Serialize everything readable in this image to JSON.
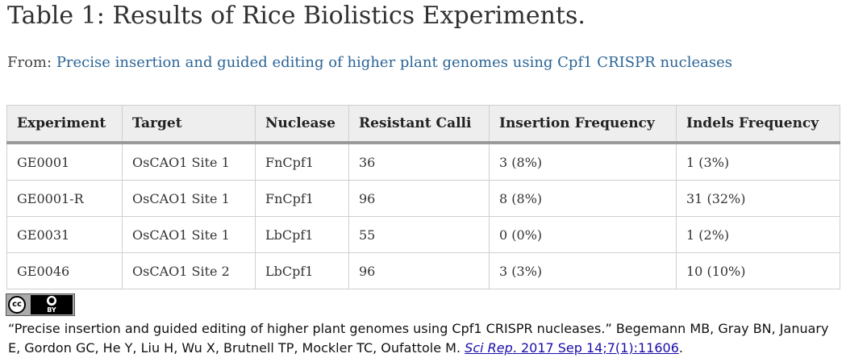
{
  "title": "Table 1: Results of Rice Biolistics Experiments.",
  "from": {
    "prefix": "From:",
    "link_text": "Precise insertion and guided editing of higher plant genomes using Cpf1 CRISPR nucleases"
  },
  "table": {
    "headers": [
      "Experiment",
      "Target",
      "Nuclease",
      "Resistant Calli",
      "Insertion Frequency",
      "Indels Frequency"
    ],
    "rows": [
      [
        "GE0001",
        "OsCAO1 Site 1",
        "FnCpf1",
        "36",
        "3 (8%)",
        "1 (3%)"
      ],
      [
        "GE0001-R",
        "OsCAO1 Site 1",
        "FnCpf1",
        "96",
        "8 (8%)",
        "31 (32%)"
      ],
      [
        "GE0031",
        "OsCAO1 Site 1",
        "LbCpf1",
        "55",
        "0 (0%)",
        "1 (2%)"
      ],
      [
        "GE0046",
        "OsCAO1 Site 2",
        "LbCpf1",
        "96",
        "3 (3%)",
        "10 (10%)"
      ]
    ]
  },
  "license": {
    "cc": "cc",
    "by_label": "BY",
    "icon": "creative-commons-by-icon"
  },
  "citation": {
    "text": "“Precise insertion and guided editing of higher plant genomes using Cpf1 CRISPR nucleases.” Begemann MB, Gray BN, January E, Gordon GC, He Y, Liu H, Wu X, Brutnell TP, Mockler TC, Oufattole M.",
    "journal": "Sci Rep",
    "date_ref": ". 2017 Sep 14;7(1):11606",
    "end": "."
  }
}
